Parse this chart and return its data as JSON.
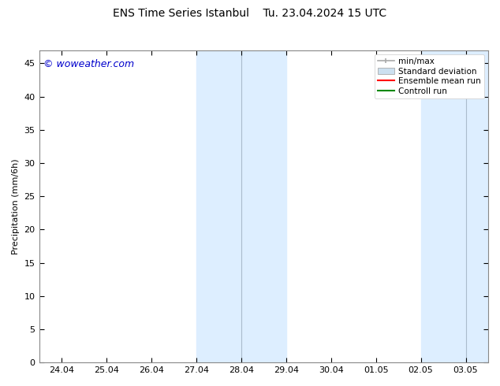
{
  "title_left": "ENS Time Series Istanbul",
  "title_right": "Tu. 23.04.2024 15 UTC",
  "ylabel": "Precipitation (mm/6h)",
  "watermark": "© woweather.com",
  "bg_color": "#ffffff",
  "plot_bg_color": "#ffffff",
  "shaded_regions": [
    {
      "x_start": 3.0,
      "x_end": 4.0,
      "color": "#ddeeff"
    },
    {
      "x_start": 4.0,
      "x_end": 5.0,
      "color": "#ddeeff"
    },
    {
      "x_start": 8.0,
      "x_end": 9.0,
      "color": "#ddeeff"
    },
    {
      "x_start": 9.0,
      "x_end": 9.5,
      "color": "#ddeeff"
    }
  ],
  "shaded_dividers": [
    4.0,
    9.0
  ],
  "x_tick_labels": [
    "24.04",
    "25.04",
    "26.04",
    "27.04",
    "28.04",
    "29.04",
    "30.04",
    "01.05",
    "02.05",
    "03.05"
  ],
  "x_tick_positions": [
    0,
    1,
    2,
    3,
    4,
    5,
    6,
    7,
    8,
    9
  ],
  "ylim": [
    0,
    47
  ],
  "yticks": [
    0,
    5,
    10,
    15,
    20,
    25,
    30,
    35,
    40,
    45
  ],
  "xlim": [
    -0.5,
    9.5
  ],
  "legend_items": [
    {
      "label": "min/max",
      "color": "#aaaaaa",
      "style": "minmax"
    },
    {
      "label": "Standard deviation",
      "color": "#cce0f0",
      "style": "fill"
    },
    {
      "label": "Ensemble mean run",
      "color": "#ff0000",
      "style": "line"
    },
    {
      "label": "Controll run",
      "color": "#008800",
      "style": "line"
    }
  ],
  "shaded_color": "#ddeeff",
  "divider_color": "#aabbcc",
  "spine_color": "#888888",
  "watermark_color": "#0000cc",
  "title_fontsize": 10,
  "axis_fontsize": 8,
  "legend_fontsize": 7.5,
  "ylabel_fontsize": 8
}
